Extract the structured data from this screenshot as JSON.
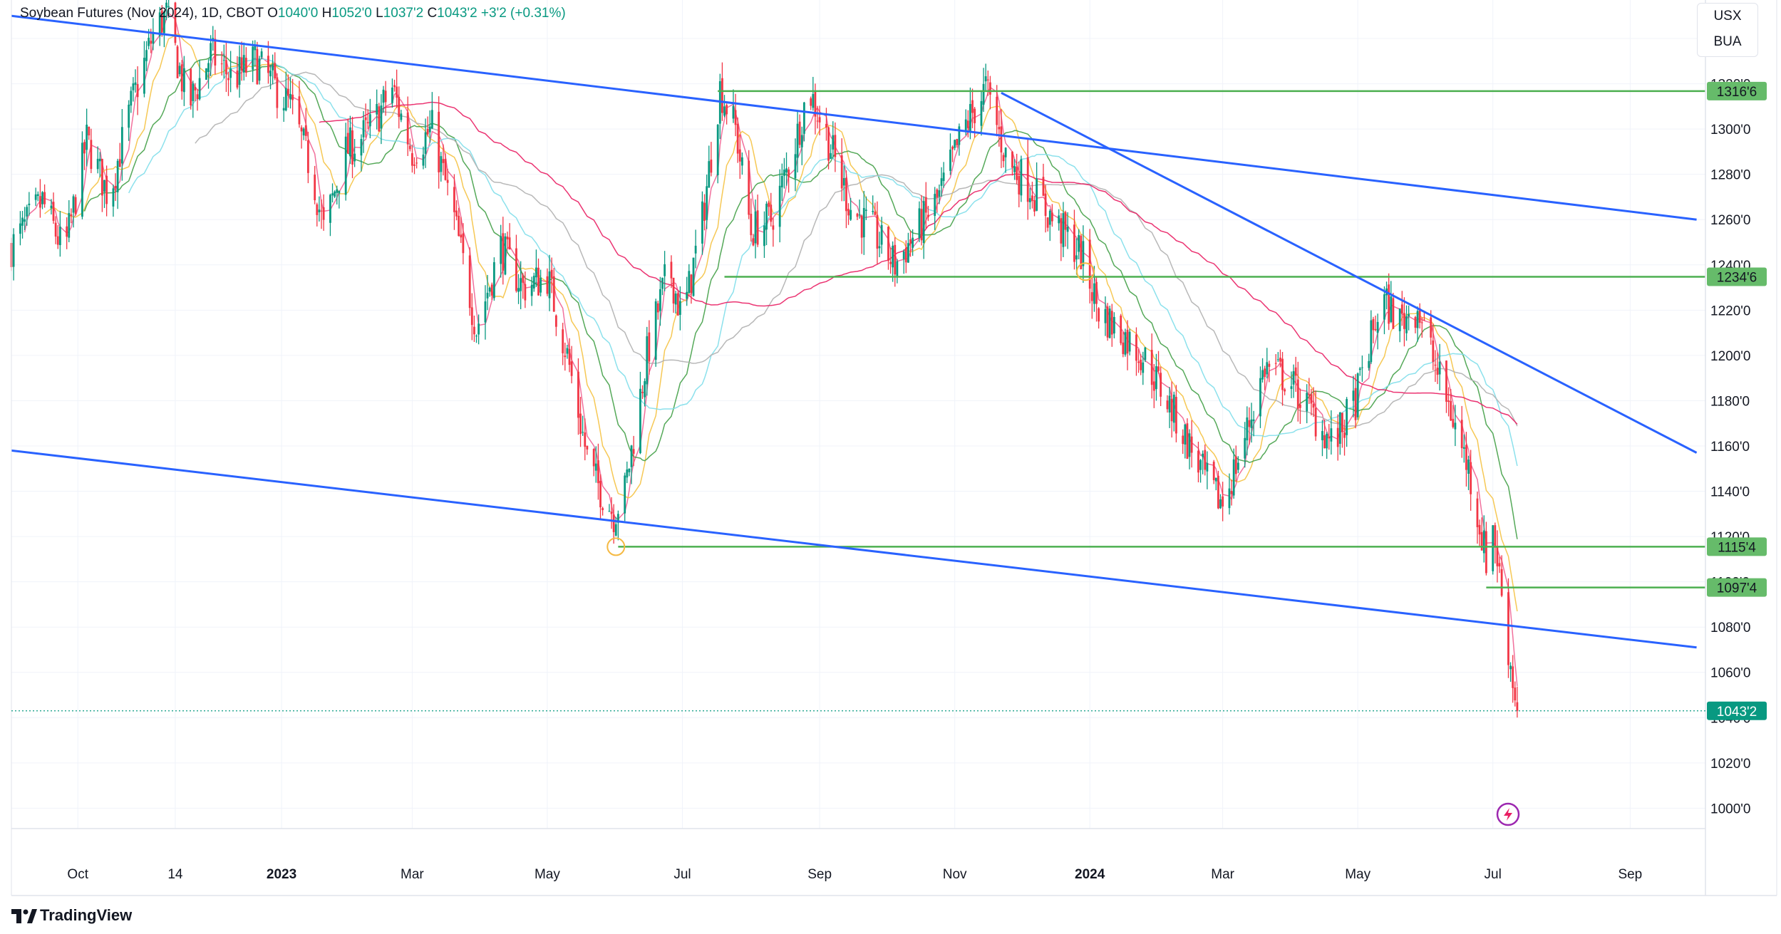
{
  "legend": {
    "symbol": "Soybean Futures (Nov 2024), 1D, CBOT",
    "o_label": "O",
    "o_value": "1040'0",
    "h_label": "H",
    "h_value": "1052'0",
    "l_label": "L",
    "l_value": "1037'2",
    "c_label": "C",
    "c_value": "1043'2",
    "change": "+3'2 (+0.31%)"
  },
  "currency": {
    "primary": "USX",
    "secondary": "BUA"
  },
  "brand": {
    "name": "TradingView"
  },
  "colors": {
    "up": "#089981",
    "down": "#f23645",
    "trendline": "#2962ff",
    "level": "#4caf50",
    "ma_fast": "#f06292",
    "ma_yellow": "#f5c242",
    "ma_green": "#43a047",
    "ma_cyan": "#80deea",
    "ma_gray": "#b0b0b0",
    "ma_magenta": "#e91e63"
  },
  "chart_data": {
    "type": "candlestick",
    "y_ticks": [
      1000,
      1020,
      1040,
      1060,
      1080,
      1100,
      1120,
      1140,
      1160,
      1180,
      1200,
      1220,
      1240,
      1260,
      1280,
      1300,
      1320,
      1340
    ],
    "y_tick_labels": [
      "1000'0",
      "1020'0",
      "1040'0",
      "1060'0",
      "1080'0",
      "1100'0",
      "1120'0",
      "1140'0",
      "1160'0",
      "1180'0",
      "1200'0",
      "1220'0",
      "1240'0",
      "1260'0",
      "1280'0",
      "1300'0",
      "1320'0",
      "1340'0"
    ],
    "ylim": [
      991,
      1357
    ],
    "x_range": [
      "2022-09-01",
      "2024-10-05"
    ],
    "x_ticks": [
      {
        "date": "2022-10-01",
        "label": "Oct",
        "bold": false
      },
      {
        "date": "2022-11-14",
        "label": "14",
        "bold": false
      },
      {
        "date": "2023-01-01",
        "label": "2023",
        "bold": true
      },
      {
        "date": "2023-03-01",
        "label": "Mar",
        "bold": false
      },
      {
        "date": "2023-05-01",
        "label": "May",
        "bold": false
      },
      {
        "date": "2023-07-01",
        "label": "Jul",
        "bold": false
      },
      {
        "date": "2023-09-01",
        "label": "Sep",
        "bold": false
      },
      {
        "date": "2023-11-01",
        "label": "Nov",
        "bold": false
      },
      {
        "date": "2024-01-01",
        "label": "2024",
        "bold": true
      },
      {
        "date": "2024-03-01",
        "label": "Mar",
        "bold": false
      },
      {
        "date": "2024-05-01",
        "label": "May",
        "bold": false
      },
      {
        "date": "2024-07-01",
        "label": "Jul",
        "bold": false
      },
      {
        "date": "2024-09-01",
        "label": "Sep",
        "bold": false
      }
    ],
    "price_path": [
      [
        "2022-09-01",
        1248
      ],
      [
        "2022-09-15",
        1268
      ],
      [
        "2022-09-25",
        1245
      ],
      [
        "2022-10-05",
        1295
      ],
      [
        "2022-10-15",
        1270
      ],
      [
        "2022-10-25",
        1310
      ],
      [
        "2022-11-05",
        1345
      ],
      [
        "2022-11-10",
        1350
      ],
      [
        "2022-11-20",
        1310
      ],
      [
        "2022-11-30",
        1333
      ],
      [
        "2022-12-10",
        1322
      ],
      [
        "2022-12-20",
        1330
      ],
      [
        "2023-01-05",
        1310
      ],
      [
        "2023-01-15",
        1280
      ],
      [
        "2023-01-20",
        1255
      ],
      [
        "2023-01-30",
        1290
      ],
      [
        "2023-02-10",
        1300
      ],
      [
        "2023-02-20",
        1318
      ],
      [
        "2023-03-01",
        1290
      ],
      [
        "2023-03-10",
        1300
      ],
      [
        "2023-03-20",
        1260
      ],
      [
        "2023-03-30",
        1212
      ],
      [
        "2023-04-10",
        1248
      ],
      [
        "2023-04-20",
        1230
      ],
      [
        "2023-05-01",
        1235
      ],
      [
        "2023-05-10",
        1200
      ],
      [
        "2023-05-20",
        1150
      ],
      [
        "2023-05-31",
        1130
      ],
      [
        "2023-06-05",
        1140
      ],
      [
        "2023-06-15",
        1200
      ],
      [
        "2023-06-25",
        1240
      ],
      [
        "2023-07-01",
        1215
      ],
      [
        "2023-07-10",
        1260
      ],
      [
        "2023-07-18",
        1318
      ],
      [
        "2023-07-25",
        1300
      ],
      [
        "2023-08-01",
        1255
      ],
      [
        "2023-08-10",
        1260
      ],
      [
        "2023-08-20",
        1290
      ],
      [
        "2023-08-27",
        1318
      ],
      [
        "2023-09-05",
        1295
      ],
      [
        "2023-09-15",
        1265
      ],
      [
        "2023-09-25",
        1255
      ],
      [
        "2023-10-05",
        1240
      ],
      [
        "2023-10-15",
        1255
      ],
      [
        "2023-10-25",
        1270
      ],
      [
        "2023-11-05",
        1300
      ],
      [
        "2023-11-15",
        1318
      ],
      [
        "2023-11-25",
        1285
      ],
      [
        "2023-12-05",
        1275
      ],
      [
        "2023-12-15",
        1260
      ],
      [
        "2023-12-28",
        1245
      ],
      [
        "2024-01-05",
        1220
      ],
      [
        "2024-01-15",
        1210
      ],
      [
        "2024-01-25",
        1200
      ],
      [
        "2024-02-05",
        1180
      ],
      [
        "2024-02-15",
        1160
      ],
      [
        "2024-02-25",
        1140
      ],
      [
        "2024-03-01",
        1135
      ],
      [
        "2024-03-10",
        1160
      ],
      [
        "2024-03-20",
        1195
      ],
      [
        "2024-03-30",
        1190
      ],
      [
        "2024-04-10",
        1175
      ],
      [
        "2024-04-20",
        1160
      ],
      [
        "2024-04-30",
        1180
      ],
      [
        "2024-05-05",
        1200
      ],
      [
        "2024-05-12",
        1225
      ],
      [
        "2024-05-20",
        1215
      ],
      [
        "2024-05-28",
        1222
      ],
      [
        "2024-06-05",
        1195
      ],
      [
        "2024-06-12",
        1175
      ],
      [
        "2024-06-20",
        1150
      ],
      [
        "2024-06-28",
        1110
      ],
      [
        "2024-07-01",
        1125
      ],
      [
        "2024-07-05",
        1095
      ],
      [
        "2024-07-08",
        1070
      ],
      [
        "2024-07-12",
        1043
      ]
    ],
    "last_price": "1043'2",
    "horizontal_levels": [
      {
        "price": 1316.75,
        "label": "1316'6",
        "from": "2023-07-17"
      },
      {
        "price": 1234.75,
        "label": "1234'6",
        "from": "2023-07-20"
      },
      {
        "price": 1115.5,
        "label": "1115'4",
        "from": "2023-06-02"
      },
      {
        "price": 1097.5,
        "label": "1097'4",
        "from": "2024-06-28"
      }
    ],
    "trendlines": [
      {
        "from": [
          "2022-09-01",
          1350
        ],
        "to": [
          "2024-10-01",
          1260
        ]
      },
      {
        "from": [
          "2022-09-01",
          1158
        ],
        "to": [
          "2024-10-01",
          1071
        ]
      },
      {
        "from": [
          "2023-11-22",
          1316
        ],
        "to": [
          "2024-10-01",
          1157
        ]
      }
    ],
    "markers": [
      {
        "date": "2023-06-01",
        "price": 1115.5
      },
      {
        "date": "2023-12-30",
        "price": 1237
      }
    ],
    "moving_averages": [
      {
        "name": "ma_fast",
        "period": 5
      },
      {
        "name": "ma_yellow",
        "period": 12
      },
      {
        "name": "ma_green",
        "period": 24
      },
      {
        "name": "ma_cyan",
        "period": 38
      },
      {
        "name": "ma_gray",
        "period": 60
      },
      {
        "name": "ma_magenta",
        "period": 100
      }
    ],
    "grid": true
  }
}
